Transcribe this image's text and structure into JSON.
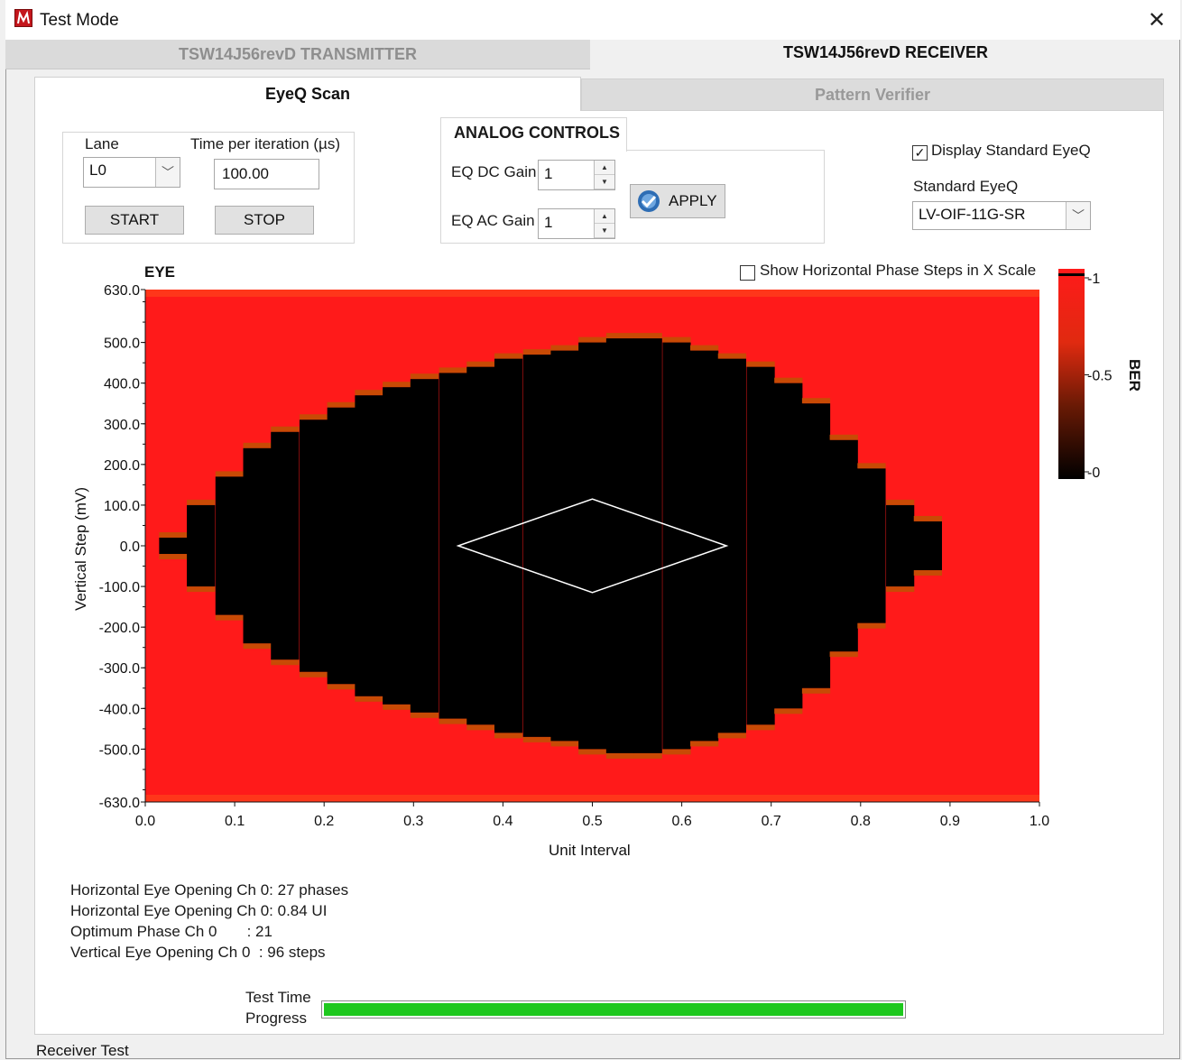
{
  "window": {
    "title": "Test Mode",
    "close_glyph": "✕"
  },
  "outer_tabs": {
    "transmitter": "TSW14J56revD TRANSMITTER",
    "receiver": "TSW14J56revD RECEIVER"
  },
  "inner_tabs": {
    "eyeq": "EyeQ Scan",
    "pattern": "Pattern Verifier"
  },
  "lane_panel": {
    "lane_label": "Lane",
    "lane_value": "L0",
    "time_label": "Time per iteration (µs)",
    "time_value": "100.00",
    "start_label": "START",
    "stop_label": "STOP"
  },
  "analog": {
    "title": "ANALOG CONTROLS",
    "dc_label": "EQ DC Gain",
    "dc_value": "1",
    "ac_label": "EQ AC Gain",
    "ac_value": "1",
    "apply_label": "APPLY"
  },
  "standard": {
    "display_label": "Display Standard EyeQ",
    "display_checked": true,
    "std_label": "Standard EyeQ",
    "std_value": "LV-OIF-11G-SR"
  },
  "show_phase": {
    "label": "Show Horizontal Phase Steps in X Scale",
    "checked": false
  },
  "stats": [
    "Horizontal Eye Opening Ch 0: 27 phases",
    "Horizontal Eye Opening Ch 0: 0.84 UI",
    "Optimum Phase Ch 0       : 21",
    "Vertical Eye Opening Ch 0  : 96 steps"
  ],
  "progress": {
    "label_line1": "Test Time",
    "label_line2": "Progress",
    "fraction": 1.0
  },
  "status_bar": "Receiver Test",
  "colors": {
    "eye_open": "#000000",
    "error": "#ff1a1a",
    "progress": "#1ec81e",
    "accent_logo": "#c4161c"
  },
  "chart_data": {
    "type": "heatmap",
    "title": "EYE",
    "xlabel": "Unit Interval",
    "ylabel": "Vertical Step (mV)",
    "xlim": [
      0.0,
      1.0
    ],
    "ylim": [
      -630.0,
      630.0
    ],
    "x_ticks": [
      "0.0",
      "0.1",
      "0.2",
      "0.3",
      "0.4",
      "0.5",
      "0.6",
      "0.7",
      "0.8",
      "0.9",
      "1.0"
    ],
    "y_ticks": [
      {
        "value": 630,
        "label": "630.0"
      },
      {
        "value": 500,
        "label": "500.0"
      },
      {
        "value": 400,
        "label": "400.0"
      },
      {
        "value": 300,
        "label": "300.0"
      },
      {
        "value": 200,
        "label": "200.0"
      },
      {
        "value": 100,
        "label": "100.0"
      },
      {
        "value": 0,
        "label": "0.0"
      },
      {
        "value": -100,
        "label": "-100.0"
      },
      {
        "value": -200,
        "label": "-200.0"
      },
      {
        "value": -300,
        "label": "-300.0"
      },
      {
        "value": -400,
        "label": "-400.0"
      },
      {
        "value": -500,
        "label": "-500.0"
      },
      {
        "value": -630,
        "label": "-630.0"
      }
    ],
    "eye_boundary": {
      "x": [
        0.031,
        0.062,
        0.094,
        0.125,
        0.156,
        0.188,
        0.219,
        0.25,
        0.281,
        0.312,
        0.344,
        0.375,
        0.406,
        0.438,
        0.469,
        0.5,
        0.531,
        0.562,
        0.594,
        0.625,
        0.656,
        0.688,
        0.719,
        0.75,
        0.781,
        0.812,
        0.844,
        0.875,
        0.906
      ],
      "y_upper": [
        20,
        100,
        170,
        240,
        280,
        310,
        340,
        370,
        390,
        410,
        425,
        440,
        460,
        470,
        480,
        500,
        510,
        510,
        500,
        480,
        460,
        440,
        400,
        350,
        260,
        190,
        100,
        60,
        -10
      ],
      "y_lower": [
        -20,
        -100,
        -170,
        -240,
        -280,
        -310,
        -340,
        -370,
        -390,
        -410,
        -425,
        -440,
        -460,
        -470,
        -480,
        -500,
        -510,
        -510,
        -500,
        -480,
        -460,
        -440,
        -400,
        -350,
        -260,
        -190,
        -100,
        -60,
        10
      ]
    },
    "mask": {
      "x": [
        0.35,
        0.5,
        0.65,
        0.5
      ],
      "y": [
        0,
        115,
        0,
        -115
      ]
    },
    "colorbar": {
      "label": "BER",
      "ticks": [
        {
          "value": 1,
          "label": "-1"
        },
        {
          "value": 0.5,
          "label": "-0.5"
        },
        {
          "value": 0,
          "label": "-0"
        }
      ]
    }
  }
}
